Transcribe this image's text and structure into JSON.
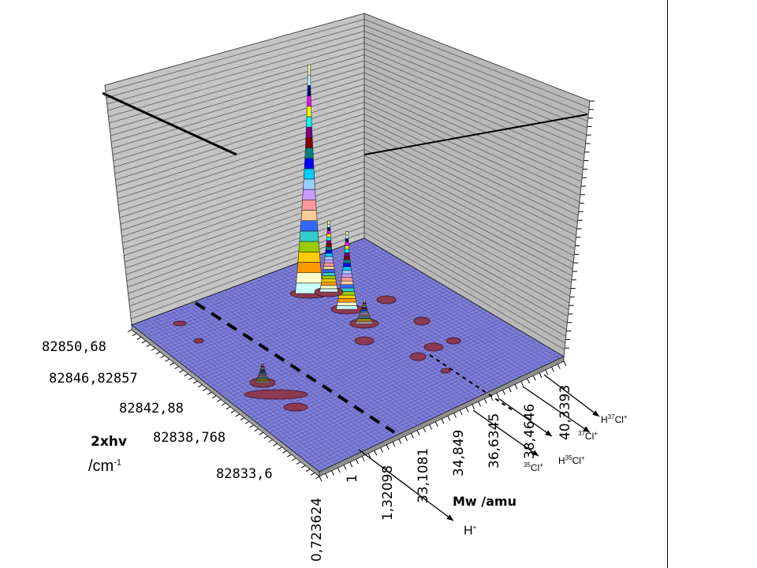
{
  "chart_data": {
    "type": "surface-3d",
    "y_axis": {
      "label": "2xhv",
      "unit": "/cm",
      "unit_exponent": "-1",
      "ticks": [
        "82850,68",
        "82846,82857",
        "82842,88",
        "82838,768",
        "82833,6"
      ]
    },
    "x_axis": {
      "label": "Mw /amu",
      "ticks": [
        "0,723624",
        "1",
        "1,32098",
        "33,1081",
        "34,849",
        "36,6345",
        "38,4646",
        "40,3393"
      ]
    },
    "annotations": [
      {
        "base": "H",
        "sup": "+",
        "pre": ""
      },
      {
        "base": "Cl",
        "sup": "+",
        "pre": "35"
      },
      {
        "base": "Cl",
        "sup": "+",
        "pre": "H35"
      },
      {
        "base": "Cl",
        "sup": "+",
        "pre": "37"
      },
      {
        "base": "Cl",
        "sup": "+",
        "pre": "H37"
      }
    ],
    "peaks": [
      {
        "mass": 35,
        "level": 1.0
      },
      {
        "mass": 36,
        "level": 0.34
      },
      {
        "mass": 37,
        "level": 0.31
      },
      {
        "mass": 38,
        "level": 0.1
      },
      {
        "mass": 1,
        "level": 0.08
      }
    ],
    "colors": {
      "floor": "#7f7fd6",
      "wall": "#c4c4c4",
      "peak_low": "#8b3a52",
      "peak_bands": [
        "#ffffcc",
        "#ccffff",
        "#000080",
        "#ff00ff",
        "#ffff00",
        "#00ffff",
        "#800080",
        "#800000",
        "#008080",
        "#0000ff",
        "#00ccff",
        "#99ccff",
        "#cc99ff",
        "#ff9999",
        "#ffcc99",
        "#3366ff",
        "#33cccc",
        "#99cc00",
        "#ffcc00",
        "#ff9900"
      ]
    }
  }
}
